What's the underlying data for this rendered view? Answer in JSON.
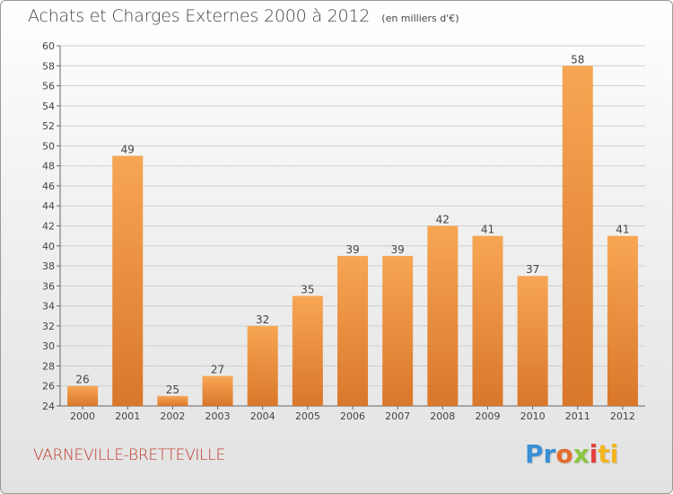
{
  "header": {
    "title": "Achats et Charges Externes 2000 à 2012",
    "unit": "(en milliers d'€)"
  },
  "footer": {
    "commune": "VARNEVILLE-BRETTEVILLE",
    "logo_parts": [
      "Pr",
      "o",
      "x",
      "i",
      "ti"
    ],
    "logo_colors": [
      "#3a8fd6",
      "#e36c2d",
      "#8cc63f",
      "#e63e3e",
      "#f2b51c"
    ]
  },
  "colors": {
    "bar_light": "#f7a654",
    "bar_dark": "#d9772a",
    "grid": "#cfcfcf",
    "axis_text": "#444444"
  },
  "chart_data": {
    "type": "bar",
    "title": "Achats et Charges Externes 2000 à 2012",
    "subtitle": "(en milliers d'€)",
    "xlabel": "",
    "ylabel": "",
    "categories": [
      "2000",
      "2001",
      "2002",
      "2003",
      "2004",
      "2005",
      "2006",
      "2007",
      "2008",
      "2009",
      "2010",
      "2011",
      "2012"
    ],
    "values": [
      26,
      49,
      25,
      27,
      32,
      35,
      39,
      39,
      42,
      41,
      37,
      58,
      41
    ],
    "ylim": [
      24,
      60
    ],
    "ytick_step": 2,
    "grid": true,
    "data_labels": true
  }
}
